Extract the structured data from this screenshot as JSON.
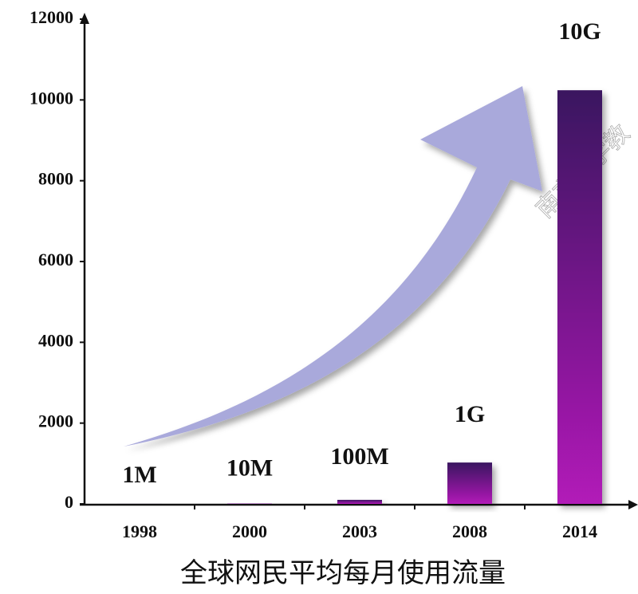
{
  "chart_data": {
    "type": "bar",
    "title": "全球网民平均每月使用流量",
    "categories": [
      "1998",
      "2000",
      "2003",
      "2008",
      "2014"
    ],
    "values": [
      1,
      10,
      100,
      1024,
      10240
    ],
    "value_labels": [
      "1M",
      "10M",
      "100M",
      "1G",
      "10G"
    ],
    "color": [
      "#3a1560",
      "#b21ab8"
    ],
    "ylim": [
      0,
      12000
    ],
    "yticks": [
      0,
      2000,
      4000,
      6000,
      8000,
      10000,
      12000
    ],
    "grid": false,
    "watermark": "南京大学教"
  }
}
